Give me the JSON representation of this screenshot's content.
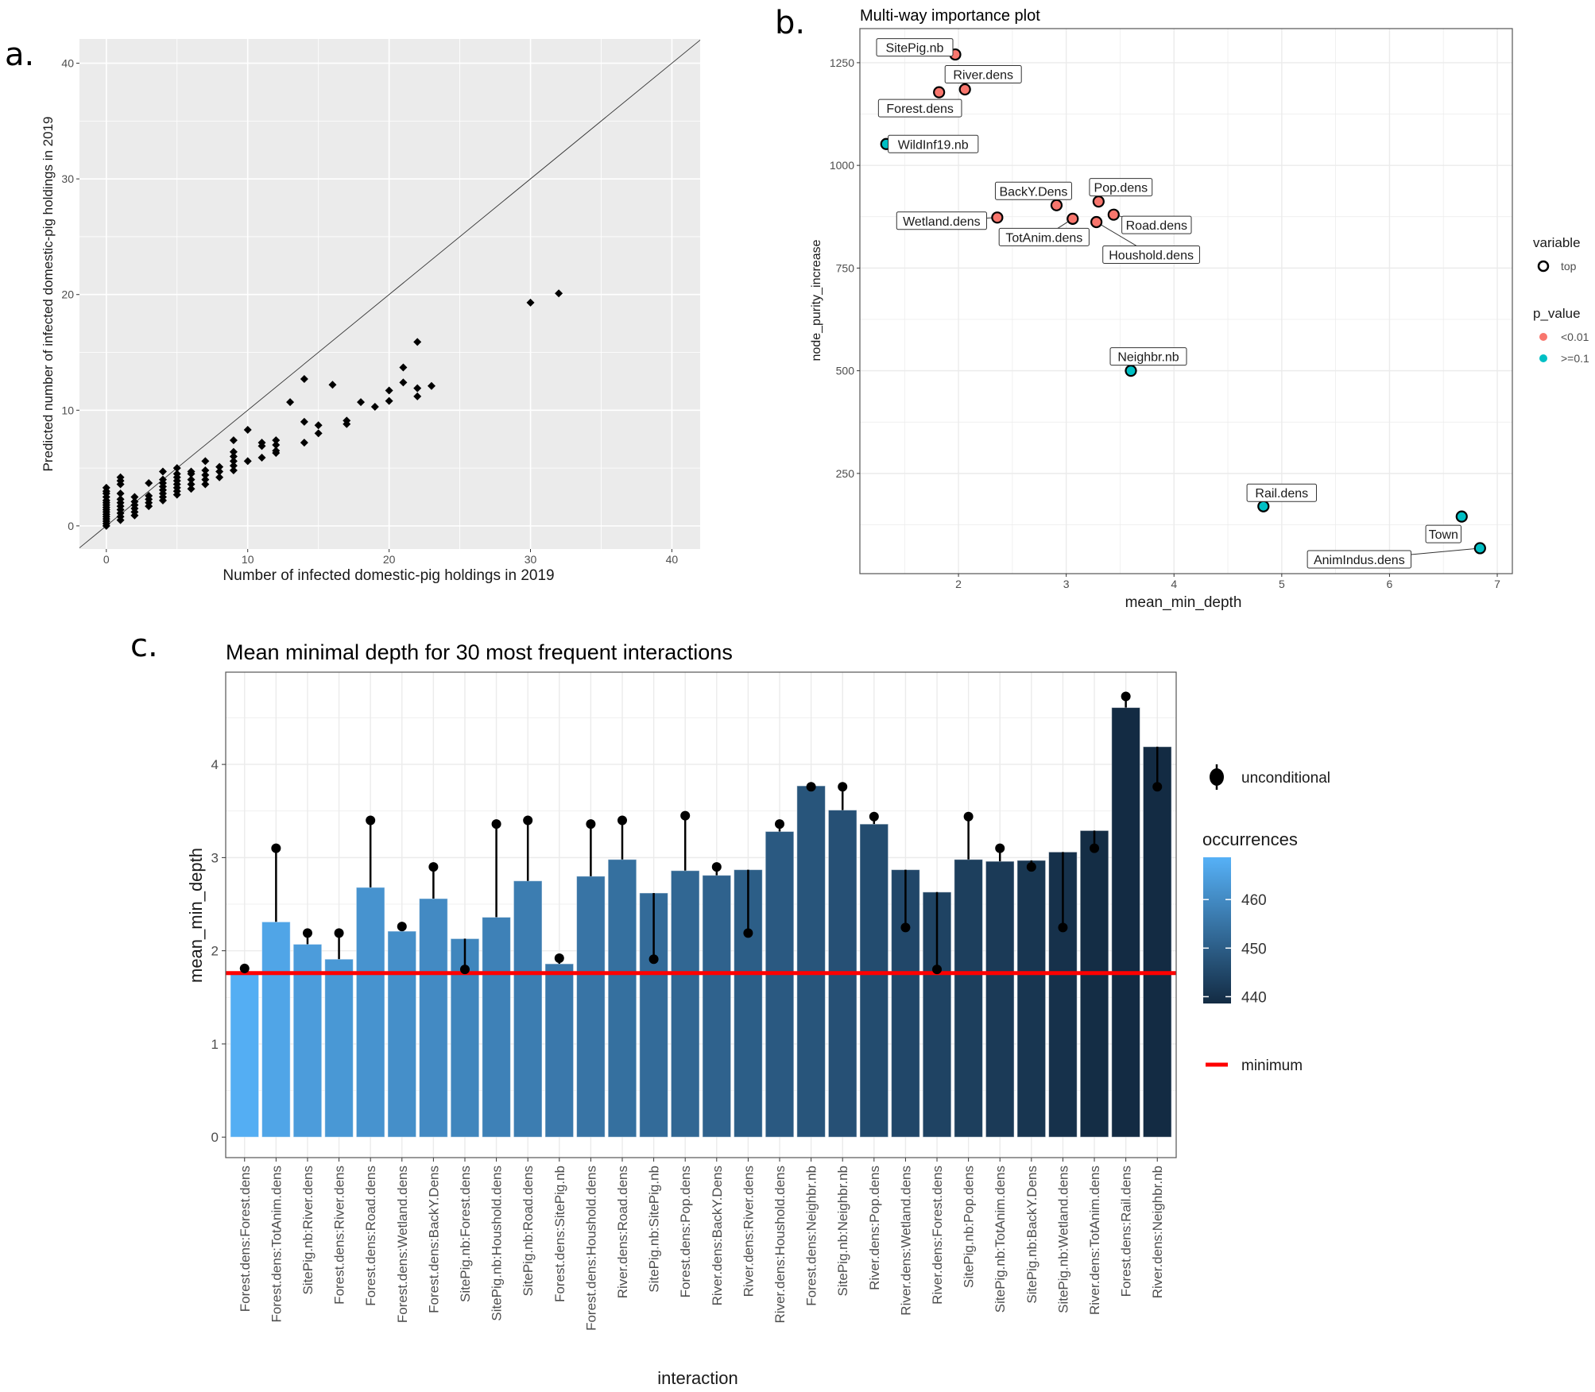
{
  "panel_labels": {
    "a": "a.",
    "b": "b.",
    "c": "c."
  },
  "chart_data": [
    {
      "id": "a",
      "type": "scatter",
      "title": "",
      "xlabel": "Number of infected domestic-pig holdings in 2019",
      "ylabel": "Predicted number of infected domestic-pig holdings in 2019",
      "xlim": [
        -1.9,
        42
      ],
      "ylim": [
        -2,
        42.1
      ],
      "xticks": [
        0,
        10,
        20,
        30,
        40
      ],
      "yticks": [
        0,
        10,
        20,
        30,
        40
      ],
      "grid": true,
      "background": "#EBEBEB",
      "marker": "diamond",
      "reference_line": "y = x",
      "points": [
        [
          0,
          0
        ],
        [
          0,
          0.2
        ],
        [
          0,
          0.4
        ],
        [
          0,
          0.6
        ],
        [
          0,
          0.8
        ],
        [
          0,
          1.0
        ],
        [
          0,
          1.2
        ],
        [
          0,
          1.4
        ],
        [
          0,
          1.6
        ],
        [
          0,
          1.8
        ],
        [
          0,
          2.0
        ],
        [
          0,
          2.2
        ],
        [
          0,
          2.5
        ],
        [
          0,
          2.8
        ],
        [
          0,
          3.0
        ],
        [
          0,
          3.3
        ],
        [
          1,
          0.5
        ],
        [
          1,
          0.8
        ],
        [
          1,
          1.1
        ],
        [
          1,
          1.4
        ],
        [
          1,
          1.7
        ],
        [
          1,
          2.0
        ],
        [
          1,
          2.3
        ],
        [
          1,
          2.8
        ],
        [
          1,
          3.6
        ],
        [
          1,
          3.9
        ],
        [
          1,
          4.2
        ],
        [
          2,
          0.9
        ],
        [
          2,
          1.2
        ],
        [
          2,
          1.5
        ],
        [
          2,
          1.8
        ],
        [
          2,
          2.1
        ],
        [
          2,
          2.5
        ],
        [
          3,
          1.7
        ],
        [
          3,
          2.0
        ],
        [
          3,
          2.3
        ],
        [
          3,
          2.6
        ],
        [
          3,
          3.7
        ],
        [
          4,
          2.2
        ],
        [
          4,
          2.5
        ],
        [
          4,
          2.8
        ],
        [
          4,
          3.1
        ],
        [
          4,
          3.4
        ],
        [
          4,
          3.7
        ],
        [
          4,
          4.0
        ],
        [
          4,
          4.7
        ],
        [
          5,
          2.7
        ],
        [
          5,
          3.0
        ],
        [
          5,
          3.3
        ],
        [
          5,
          3.6
        ],
        [
          5,
          3.9
        ],
        [
          5,
          4.2
        ],
        [
          5,
          4.5
        ],
        [
          5,
          5.0
        ],
        [
          6,
          3.2
        ],
        [
          6,
          3.6
        ],
        [
          6,
          4.0
        ],
        [
          6,
          4.5
        ],
        [
          6,
          4.7
        ],
        [
          7,
          3.6
        ],
        [
          7,
          4.0
        ],
        [
          7,
          4.4
        ],
        [
          7,
          4.8
        ],
        [
          7,
          5.6
        ],
        [
          8,
          4.2
        ],
        [
          8,
          4.7
        ],
        [
          8,
          5.1
        ],
        [
          9,
          4.8
        ],
        [
          9,
          5.2
        ],
        [
          9,
          5.6
        ],
        [
          9,
          6.0
        ],
        [
          9,
          6.4
        ],
        [
          9,
          7.4
        ],
        [
          10,
          5.6
        ],
        [
          10,
          8.3
        ],
        [
          11,
          5.9
        ],
        [
          11,
          6.9
        ],
        [
          11,
          7.2
        ],
        [
          12,
          6.3
        ],
        [
          12,
          6.5
        ],
        [
          12,
          7.0
        ],
        [
          12,
          7.4
        ],
        [
          13,
          10.7
        ],
        [
          14,
          7.2
        ],
        [
          14,
          9.0
        ],
        [
          14,
          12.7
        ],
        [
          15,
          8.0
        ],
        [
          15,
          8.7
        ],
        [
          16,
          12.2
        ],
        [
          17,
          8.8
        ],
        [
          17,
          9.1
        ],
        [
          18,
          10.7
        ],
        [
          19,
          10.3
        ],
        [
          20,
          10.8
        ],
        [
          20,
          11.7
        ],
        [
          21,
          12.4
        ],
        [
          21,
          13.7
        ],
        [
          22,
          11.2
        ],
        [
          22,
          11.9
        ],
        [
          22,
          15.9
        ],
        [
          23,
          12.1
        ],
        [
          30,
          19.3
        ],
        [
          32,
          20.1
        ]
      ]
    },
    {
      "id": "b",
      "type": "scatter",
      "title": "Multi-way importance plot",
      "xlabel": "mean_min_depth",
      "ylabel": "node_purity_increase",
      "xlim": [
        1.085,
        7.14
      ],
      "ylim": [
        6,
        1333
      ],
      "xticks": [
        2,
        3,
        4,
        5,
        6,
        7
      ],
      "yticks": [
        250,
        500,
        750,
        1000,
        1250
      ],
      "grid": true,
      "legend": {
        "placement": "right",
        "variable_title": "variable",
        "variable_entries": [
          "top"
        ],
        "p_value_title": "p_value",
        "p_value_entries": [
          {
            "label": "<0.01",
            "color": "#F8766D"
          },
          {
            "label": ">=0.1",
            "color": "#00BFC4"
          }
        ]
      },
      "points": [
        {
          "label": "SitePig.nb",
          "x": 1.97,
          "y": 1270,
          "p_value": "<0.01"
        },
        {
          "label": "River.dens",
          "x": 2.06,
          "y": 1185,
          "p_value": "<0.01"
        },
        {
          "label": "Forest.dens",
          "x": 1.82,
          "y": 1178,
          "p_value": "<0.01"
        },
        {
          "label": "WildInf19.nb",
          "x": 1.33,
          "y": 1052,
          "p_value": ">=0.1"
        },
        {
          "label": "BackY.Dens",
          "x": 2.91,
          "y": 903,
          "p_value": "<0.01"
        },
        {
          "label": "Pop.dens",
          "x": 3.3,
          "y": 912,
          "p_value": "<0.01"
        },
        {
          "label": "Wetland.dens",
          "x": 2.36,
          "y": 873,
          "p_value": "<0.01"
        },
        {
          "label": "TotAnim.dens",
          "x": 3.06,
          "y": 870,
          "p_value": "<0.01"
        },
        {
          "label": "Road.dens",
          "x": 3.44,
          "y": 880,
          "p_value": "<0.01"
        },
        {
          "label": "Houshold.dens",
          "x": 3.28,
          "y": 862,
          "p_value": "<0.01"
        },
        {
          "label": "Neighbr.nb",
          "x": 3.6,
          "y": 500,
          "p_value": ">=0.1"
        },
        {
          "label": "Rail.dens",
          "x": 4.83,
          "y": 170,
          "p_value": ">=0.1"
        },
        {
          "label": "Town",
          "x": 6.67,
          "y": 145,
          "p_value": ">=0.1"
        },
        {
          "label": "AnimIndus.dens",
          "x": 6.84,
          "y": 68,
          "p_value": ">=0.1"
        }
      ]
    },
    {
      "id": "c",
      "type": "bar",
      "title": "Mean minimal depth for 30 most frequent interactions",
      "xlabel": "interaction",
      "ylabel": "mean_min_depth",
      "ylim": [
        -0.22,
        4.99
      ],
      "yticks": [
        0,
        1,
        2,
        3,
        4
      ],
      "grid": true,
      "minimum": 1.76,
      "minimum_color": "#FF0000",
      "color_scale": {
        "low": "#132B43",
        "high": "#56B1F7",
        "range": [
          438.6,
          468.7
        ],
        "ticks": [
          440,
          450,
          460
        ]
      },
      "legend": {
        "unconditional_label": "unconditional",
        "occurrences_title": "occurrences",
        "minimum_label": "minimum"
      },
      "categories": [
        "Forest.dens:Forest.dens",
        "Forest.dens:TotAnim.dens",
        "SitePig.nb:River.dens",
        "Forest.dens:River.dens",
        "Forest.dens:Road.dens",
        "Forest.dens:Wetland.dens",
        "Forest.dens:BackY.Dens",
        "SitePig.nb:Forest.dens",
        "SitePig.nb:Houshold.dens",
        "SitePig.nb:Road.dens",
        "Forest.dens:SitePig.nb",
        "Forest.dens:Houshold.dens",
        "River.dens:Road.dens",
        "SitePig.nb:SitePig.nb",
        "Forest.dens:Pop.dens",
        "River.dens:BackY.Dens",
        "River.dens:River.dens",
        "River.dens:Houshold.dens",
        "Forest.dens:Neighbr.nb",
        "SitePig.nb:Neighbr.nb",
        "River.dens:Pop.dens",
        "River.dens:Wetland.dens",
        "River.dens:Forest.dens",
        "SitePig.nb:Pop.dens",
        "SitePig.nb:TotAnim.dens",
        "SitePig.nb:BackY.Dens",
        "SitePig.nb:Wetland.dens",
        "River.dens:TotAnim.dens",
        "Forest.dens:Rail.dens",
        "River.dens:Neighbr.nb"
      ],
      "series": [
        {
          "name": "mean_min_depth",
          "values": [
            1.76,
            2.31,
            2.07,
            1.91,
            2.68,
            2.21,
            2.56,
            2.13,
            2.36,
            2.75,
            1.86,
            2.8,
            2.98,
            2.62,
            2.86,
            2.81,
            2.87,
            3.28,
            3.77,
            3.51,
            3.36,
            2.87,
            2.63,
            2.98,
            2.96,
            2.97,
            3.06,
            3.29,
            4.61,
            4.19
          ]
        },
        {
          "name": "unconditional",
          "values": [
            1.81,
            3.1,
            2.19,
            2.19,
            3.4,
            2.26,
            2.9,
            1.8,
            3.36,
            3.4,
            1.92,
            3.36,
            3.4,
            1.91,
            3.45,
            2.9,
            2.19,
            3.36,
            3.76,
            3.76,
            3.44,
            2.25,
            1.8,
            3.44,
            3.1,
            2.9,
            2.25,
            3.1,
            4.73,
            3.76
          ]
        },
        {
          "name": "occurrences",
          "values": [
            468,
            466,
            464,
            463,
            462,
            461,
            460,
            459,
            458,
            457,
            456,
            455,
            454,
            453,
            452,
            451,
            450,
            449,
            448,
            447,
            446,
            445,
            444,
            443,
            442,
            441,
            440,
            439,
            438,
            437
          ]
        }
      ]
    }
  ]
}
